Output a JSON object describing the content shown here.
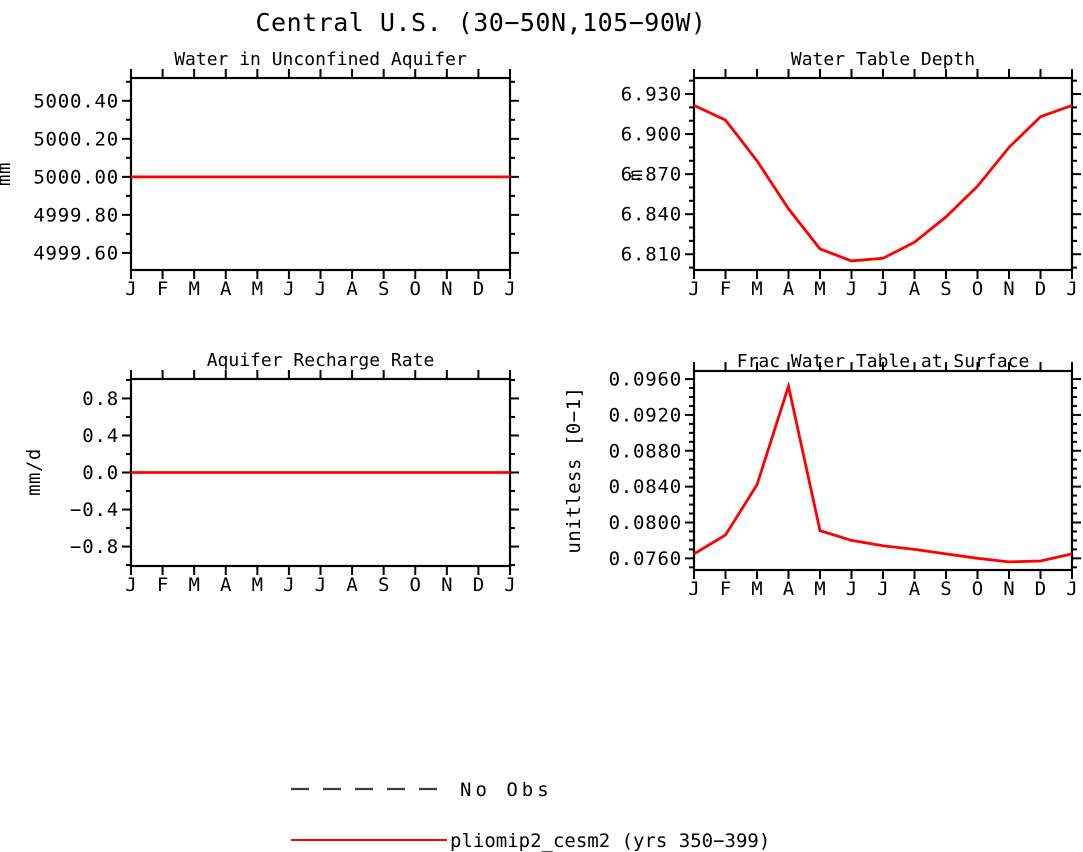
{
  "title": "Central U.S. (30−50N,105−90W)",
  "months": [
    "J",
    "F",
    "M",
    "A",
    "M",
    "J",
    "J",
    "A",
    "S",
    "O",
    "N",
    "D",
    "J"
  ],
  "colors": {
    "background": "#ffffff",
    "axis": "#000000",
    "series": "#ff0000",
    "no_obs": "#3c3c3c"
  },
  "legend": {
    "position": "bottom",
    "items": [
      {
        "label": "No Obs",
        "style": "dashed",
        "color": "#3c3c3c"
      },
      {
        "label": "pliomip2_cesm2 (yrs 350−399)",
        "style": "solid",
        "color": "#ff0000"
      }
    ]
  },
  "chart_data": [
    {
      "type": "line",
      "title": "Water in Unconfined Aquifer",
      "ylabel": "mm",
      "categories": [
        "J",
        "F",
        "M",
        "A",
        "M",
        "J",
        "J",
        "A",
        "S",
        "O",
        "N",
        "D",
        "J"
      ],
      "series": [
        {
          "name": "pliomip2_cesm2 (yrs 350−399)",
          "color": "#ff0000",
          "values": [
            5000.0,
            5000.0,
            5000.0,
            5000.0,
            5000.0,
            5000.0,
            5000.0,
            5000.0,
            5000.0,
            5000.0,
            5000.0,
            5000.0,
            5000.0
          ]
        }
      ],
      "ylim": [
        4999.51,
        5000.52
      ],
      "yticks": {
        "values": [
          4999.6,
          4999.8,
          5000.0,
          5000.2,
          5000.4
        ],
        "labels": [
          "4999.60",
          "4999.80",
          "5000.00",
          "5000.20",
          "5000.40"
        ]
      },
      "minor_tick_step": 0.1,
      "grid": false
    },
    {
      "type": "line",
      "title": "Water Table Depth",
      "ylabel": "m",
      "categories": [
        "J",
        "F",
        "M",
        "A",
        "M",
        "J",
        "J",
        "A",
        "S",
        "O",
        "N",
        "D",
        "J"
      ],
      "series": [
        {
          "name": "pliomip2_cesm2 (yrs 350−399)",
          "color": "#ff0000",
          "values": [
            6.9215,
            6.9105,
            6.88,
            6.844,
            6.814,
            6.805,
            6.807,
            6.819,
            6.838,
            6.861,
            6.89,
            6.913,
            6.9215
          ]
        }
      ],
      "ylim": [
        6.7982,
        6.942
      ],
      "yticks": {
        "values": [
          6.81,
          6.84,
          6.87,
          6.9,
          6.93
        ],
        "labels": [
          "6.810",
          "6.840",
          "6.870",
          "6.900",
          "6.930"
        ]
      },
      "minor_tick_step": 0.01,
      "grid": false
    },
    {
      "type": "line",
      "title": "Aquifer Recharge Rate",
      "ylabel": "mm/d",
      "categories": [
        "J",
        "F",
        "M",
        "A",
        "M",
        "J",
        "J",
        "A",
        "S",
        "O",
        "N",
        "D",
        "J"
      ],
      "series": [
        {
          "name": "pliomip2_cesm2 (yrs 350−399)",
          "color": "#ff0000",
          "values": [
            0.0,
            0.0,
            0.0,
            0.0,
            0.0,
            0.0,
            0.0,
            0.0,
            0.0,
            0.0,
            0.0,
            0.0,
            0.0
          ]
        }
      ],
      "ylim": [
        -1.01,
        1.01
      ],
      "yticks": {
        "values": [
          -0.8,
          -0.4,
          0.0,
          0.4,
          0.8
        ],
        "labels": [
          "−0.8",
          "−0.4",
          "0.0",
          "0.4",
          "0.8"
        ]
      },
      "minor_tick_step": 0.2,
      "grid": false
    },
    {
      "type": "line",
      "title": "Frac Water Table at Surface",
      "ylabel": "unitless [0−1]",
      "categories": [
        "J",
        "F",
        "M",
        "A",
        "M",
        "J",
        "J",
        "A",
        "S",
        "O",
        "N",
        "D",
        "J"
      ],
      "series": [
        {
          "name": "pliomip2_cesm2 (yrs 350−399)",
          "color": "#ff0000",
          "values": [
            0.0765,
            0.0786,
            0.0842,
            0.0952,
            0.0791,
            0.078,
            0.0774,
            0.077,
            0.0765,
            0.076,
            0.0756,
            0.0757,
            0.0765
          ]
        }
      ],
      "ylim": [
        0.0747,
        0.0969
      ],
      "yticks": {
        "values": [
          0.076,
          0.08,
          0.084,
          0.088,
          0.092,
          0.096
        ],
        "labels": [
          "0.0760",
          "0.0800",
          "0.0840",
          "0.0880",
          "0.0920",
          "0.0960"
        ]
      },
      "minor_tick_step": 0.001,
      "grid": false
    }
  ]
}
